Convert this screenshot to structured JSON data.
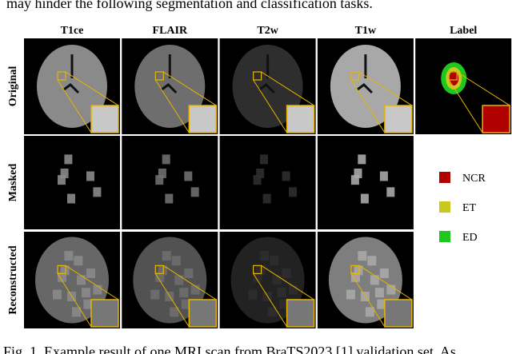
{
  "header_text": "may hinder the following segmentation and classification tasks.",
  "columns": [
    "T1ce",
    "FLAIR",
    "T2w",
    "T1w",
    "Label"
  ],
  "rows": [
    "Original",
    "Masked",
    "Reconstructed"
  ],
  "legend": [
    {
      "label": "NCR",
      "color": "#b00000"
    },
    {
      "label": "ET",
      "color": "#c8c81e"
    },
    {
      "label": "ED",
      "color": "#1ec81e"
    }
  ],
  "caption": "Fig. 1. Example result of one MRI scan from BraTS2023 [1] validation set. As"
}
